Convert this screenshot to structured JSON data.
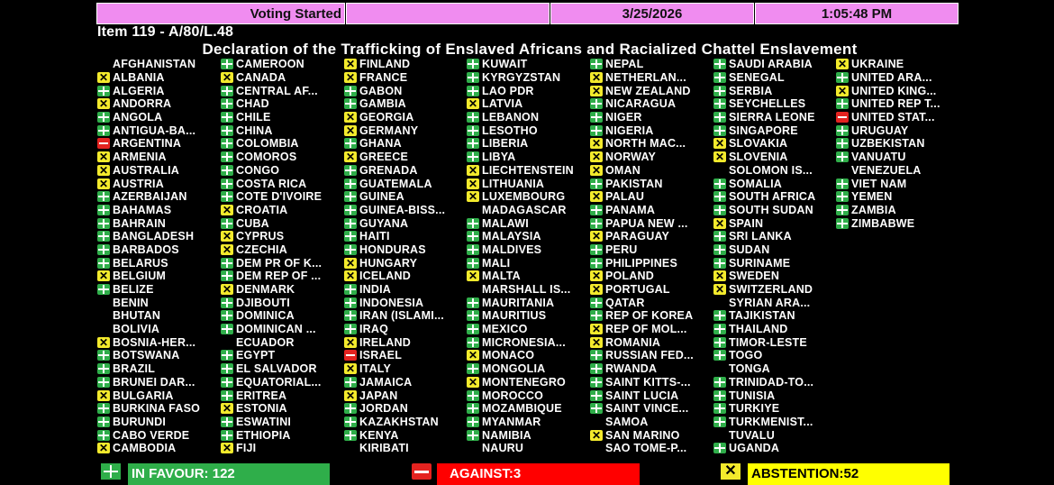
{
  "header": {
    "status": "Voting Started",
    "blank": "",
    "date": "3/25/2026",
    "time": "1:05:48 PM"
  },
  "item": "Item 119 - A/80/L.48",
  "title": "Declaration of the Trafficking of Enslaved Africans and Racialized Chattel Enslavement",
  "colors": {
    "header_bg": "#f08cf0",
    "yes": "#2fae4a",
    "no": "#e42320",
    "abstain": "#f3ea2c"
  },
  "vote_legend": {
    "Y": "plus-icon (in favour)",
    "N": "minus-icon (against)",
    "A": "x-icon (abstention)",
    "B": "no vote"
  },
  "columns": [
    [
      [
        "AFGHANISTAN",
        "B"
      ],
      [
        "ALBANIA",
        "A"
      ],
      [
        "ALGERIA",
        "Y"
      ],
      [
        "ANDORRA",
        "A"
      ],
      [
        "ANGOLA",
        "Y"
      ],
      [
        "ANTIGUA-BA...",
        "Y"
      ],
      [
        "ARGENTINA",
        "N"
      ],
      [
        "ARMENIA",
        "A"
      ],
      [
        "AUSTRALIA",
        "A"
      ],
      [
        "AUSTRIA",
        "A"
      ],
      [
        "AZERBAIJAN",
        "Y"
      ],
      [
        "BAHAMAS",
        "Y"
      ],
      [
        "BAHRAIN",
        "Y"
      ],
      [
        "BANGLADESH",
        "Y"
      ],
      [
        "BARBADOS",
        "Y"
      ],
      [
        "BELARUS",
        "Y"
      ],
      [
        "BELGIUM",
        "A"
      ],
      [
        "BELIZE",
        "Y"
      ],
      [
        "BENIN",
        "B"
      ],
      [
        "BHUTAN",
        "B"
      ],
      [
        "BOLIVIA",
        "B"
      ],
      [
        "BOSNIA-HER...",
        "A"
      ],
      [
        "BOTSWANA",
        "Y"
      ],
      [
        "BRAZIL",
        "Y"
      ],
      [
        "BRUNEI DAR...",
        "Y"
      ],
      [
        "BULGARIA",
        "A"
      ],
      [
        "BURKINA FASO",
        "Y"
      ],
      [
        "BURUNDI",
        "Y"
      ],
      [
        "CABO VERDE",
        "Y"
      ],
      [
        "CAMBODIA",
        "A"
      ]
    ],
    [
      [
        "CAMEROON",
        "Y"
      ],
      [
        "CANADA",
        "A"
      ],
      [
        "CENTRAL AF...",
        "Y"
      ],
      [
        "CHAD",
        "Y"
      ],
      [
        "CHILE",
        "Y"
      ],
      [
        "CHINA",
        "Y"
      ],
      [
        "COLOMBIA",
        "Y"
      ],
      [
        "COMOROS",
        "Y"
      ],
      [
        "CONGO",
        "Y"
      ],
      [
        "COSTA RICA",
        "Y"
      ],
      [
        "COTE D'IVOIRE",
        "Y"
      ],
      [
        "CROATIA",
        "A"
      ],
      [
        "CUBA",
        "Y"
      ],
      [
        "CYPRUS",
        "A"
      ],
      [
        "CZECHIA",
        "A"
      ],
      [
        "DEM PR OF K...",
        "Y"
      ],
      [
        "DEM REP OF ...",
        "Y"
      ],
      [
        "DENMARK",
        "A"
      ],
      [
        "DJIBOUTI",
        "Y"
      ],
      [
        "DOMINICA",
        "Y"
      ],
      [
        "DOMINICAN ...",
        "Y"
      ],
      [
        "ECUADOR",
        "B"
      ],
      [
        "EGYPT",
        "Y"
      ],
      [
        "EL SALVADOR",
        "Y"
      ],
      [
        "EQUATORIAL...",
        "Y"
      ],
      [
        "ERITREA",
        "Y"
      ],
      [
        "ESTONIA",
        "A"
      ],
      [
        "ESWATINI",
        "Y"
      ],
      [
        "ETHIOPIA",
        "Y"
      ],
      [
        "FIJI",
        "A"
      ]
    ],
    [
      [
        "FINLAND",
        "A"
      ],
      [
        "FRANCE",
        "A"
      ],
      [
        "GABON",
        "Y"
      ],
      [
        "GAMBIA",
        "Y"
      ],
      [
        "GEORGIA",
        "A"
      ],
      [
        "GERMANY",
        "A"
      ],
      [
        "GHANA",
        "Y"
      ],
      [
        "GREECE",
        "A"
      ],
      [
        "GRENADA",
        "Y"
      ],
      [
        "GUATEMALA",
        "Y"
      ],
      [
        "GUINEA",
        "Y"
      ],
      [
        "GUINEA-BISS...",
        "Y"
      ],
      [
        "GUYANA",
        "Y"
      ],
      [
        "HAITI",
        "Y"
      ],
      [
        "HONDURAS",
        "Y"
      ],
      [
        "HUNGARY",
        "A"
      ],
      [
        "ICELAND",
        "A"
      ],
      [
        "INDIA",
        "Y"
      ],
      [
        "INDONESIA",
        "Y"
      ],
      [
        "IRAN (ISLAMI...",
        "Y"
      ],
      [
        "IRAQ",
        "Y"
      ],
      [
        "IRELAND",
        "A"
      ],
      [
        "ISRAEL",
        "N"
      ],
      [
        "ITALY",
        "A"
      ],
      [
        "JAMAICA",
        "Y"
      ],
      [
        "JAPAN",
        "A"
      ],
      [
        "JORDAN",
        "Y"
      ],
      [
        "KAZAKHSTAN",
        "Y"
      ],
      [
        "KENYA",
        "Y"
      ],
      [
        "KIRIBATI",
        "B"
      ]
    ],
    [
      [
        "KUWAIT",
        "Y"
      ],
      [
        "KYRGYZSTAN",
        "Y"
      ],
      [
        "LAO PDR",
        "Y"
      ],
      [
        "LATVIA",
        "A"
      ],
      [
        "LEBANON",
        "Y"
      ],
      [
        "LESOTHO",
        "Y"
      ],
      [
        "LIBERIA",
        "Y"
      ],
      [
        "LIBYA",
        "Y"
      ],
      [
        "LIECHTENSTEIN",
        "A"
      ],
      [
        "LITHUANIA",
        "A"
      ],
      [
        "LUXEMBOURG",
        "A"
      ],
      [
        "MADAGASCAR",
        "B"
      ],
      [
        "MALAWI",
        "Y"
      ],
      [
        "MALAYSIA",
        "Y"
      ],
      [
        "MALDIVES",
        "Y"
      ],
      [
        "MALI",
        "Y"
      ],
      [
        "MALTA",
        "A"
      ],
      [
        "MARSHALL IS...",
        "B"
      ],
      [
        "MAURITANIA",
        "Y"
      ],
      [
        "MAURITIUS",
        "Y"
      ],
      [
        "MEXICO",
        "Y"
      ],
      [
        "MICRONESIA...",
        "Y"
      ],
      [
        "MONACO",
        "A"
      ],
      [
        "MONGOLIA",
        "Y"
      ],
      [
        "MONTENEGRO",
        "A"
      ],
      [
        "MOROCCO",
        "Y"
      ],
      [
        "MOZAMBIQUE",
        "Y"
      ],
      [
        "MYANMAR",
        "Y"
      ],
      [
        "NAMIBIA",
        "Y"
      ],
      [
        "NAURU",
        "B"
      ]
    ],
    [
      [
        "NEPAL",
        "Y"
      ],
      [
        "NETHERLAN...",
        "A"
      ],
      [
        "NEW ZEALAND",
        "A"
      ],
      [
        "NICARAGUA",
        "Y"
      ],
      [
        "NIGER",
        "Y"
      ],
      [
        "NIGERIA",
        "Y"
      ],
      [
        "NORTH MAC...",
        "A"
      ],
      [
        "NORWAY",
        "A"
      ],
      [
        "OMAN",
        "A"
      ],
      [
        "PAKISTAN",
        "Y"
      ],
      [
        "PALAU",
        "A"
      ],
      [
        "PANAMA",
        "Y"
      ],
      [
        "PAPUA NEW ...",
        "Y"
      ],
      [
        "PARAGUAY",
        "A"
      ],
      [
        "PERU",
        "Y"
      ],
      [
        "PHILIPPINES",
        "Y"
      ],
      [
        "POLAND",
        "A"
      ],
      [
        "PORTUGAL",
        "A"
      ],
      [
        "QATAR",
        "Y"
      ],
      [
        "REP OF KOREA",
        "Y"
      ],
      [
        "REP OF MOL...",
        "A"
      ],
      [
        "ROMANIA",
        "A"
      ],
      [
        "RUSSIAN FED...",
        "Y"
      ],
      [
        "RWANDA",
        "Y"
      ],
      [
        "SAINT KITTS-...",
        "Y"
      ],
      [
        "SAINT LUCIA",
        "Y"
      ],
      [
        "SAINT VINCE...",
        "Y"
      ],
      [
        "SAMOA",
        "B"
      ],
      [
        "SAN MARINO",
        "A"
      ],
      [
        "SAO TOME-P...",
        "B"
      ]
    ],
    [
      [
        "SAUDI ARABIA",
        "Y"
      ],
      [
        "SENEGAL",
        "Y"
      ],
      [
        "SERBIA",
        "Y"
      ],
      [
        "SEYCHELLES",
        "Y"
      ],
      [
        "SIERRA LEONE",
        "Y"
      ],
      [
        "SINGAPORE",
        "Y"
      ],
      [
        "SLOVAKIA",
        "A"
      ],
      [
        "SLOVENIA",
        "A"
      ],
      [
        "SOLOMON IS...",
        "B"
      ],
      [
        "SOMALIA",
        "Y"
      ],
      [
        "SOUTH AFRICA",
        "Y"
      ],
      [
        "SOUTH SUDAN",
        "Y"
      ],
      [
        "SPAIN",
        "A"
      ],
      [
        "SRI LANKA",
        "Y"
      ],
      [
        "SUDAN",
        "Y"
      ],
      [
        "SURINAME",
        "Y"
      ],
      [
        "SWEDEN",
        "A"
      ],
      [
        "SWITZERLAND",
        "A"
      ],
      [
        "SYRIAN ARA...",
        "B"
      ],
      [
        "TAJIKISTAN",
        "Y"
      ],
      [
        "THAILAND",
        "Y"
      ],
      [
        "TIMOR-LESTE",
        "Y"
      ],
      [
        "TOGO",
        "Y"
      ],
      [
        "TONGA",
        "B"
      ],
      [
        "TRINIDAD-TO...",
        "Y"
      ],
      [
        "TUNISIA",
        "Y"
      ],
      [
        "TURKIYE",
        "Y"
      ],
      [
        "TURKMENIST...",
        "Y"
      ],
      [
        "TUVALU",
        "B"
      ],
      [
        "UGANDA",
        "Y"
      ]
    ],
    [
      [
        "UKRAINE",
        "A"
      ],
      [
        "UNITED ARA...",
        "Y"
      ],
      [
        "UNITED KING...",
        "A"
      ],
      [
        "UNITED REP T...",
        "Y"
      ],
      [
        "UNITED STAT...",
        "N"
      ],
      [
        "URUGUAY",
        "Y"
      ],
      [
        "UZBEKISTAN",
        "Y"
      ],
      [
        "VANUATU",
        "Y"
      ],
      [
        "VENEZUELA",
        "B"
      ],
      [
        "VIET NAM",
        "Y"
      ],
      [
        "YEMEN",
        "Y"
      ],
      [
        "ZAMBIA",
        "Y"
      ],
      [
        "ZIMBABWE",
        "Y"
      ]
    ]
  ],
  "totals": {
    "in_favour": "IN FAVOUR: 122",
    "against": "AGAINST:3",
    "abstention": "ABSTENTION:52"
  }
}
